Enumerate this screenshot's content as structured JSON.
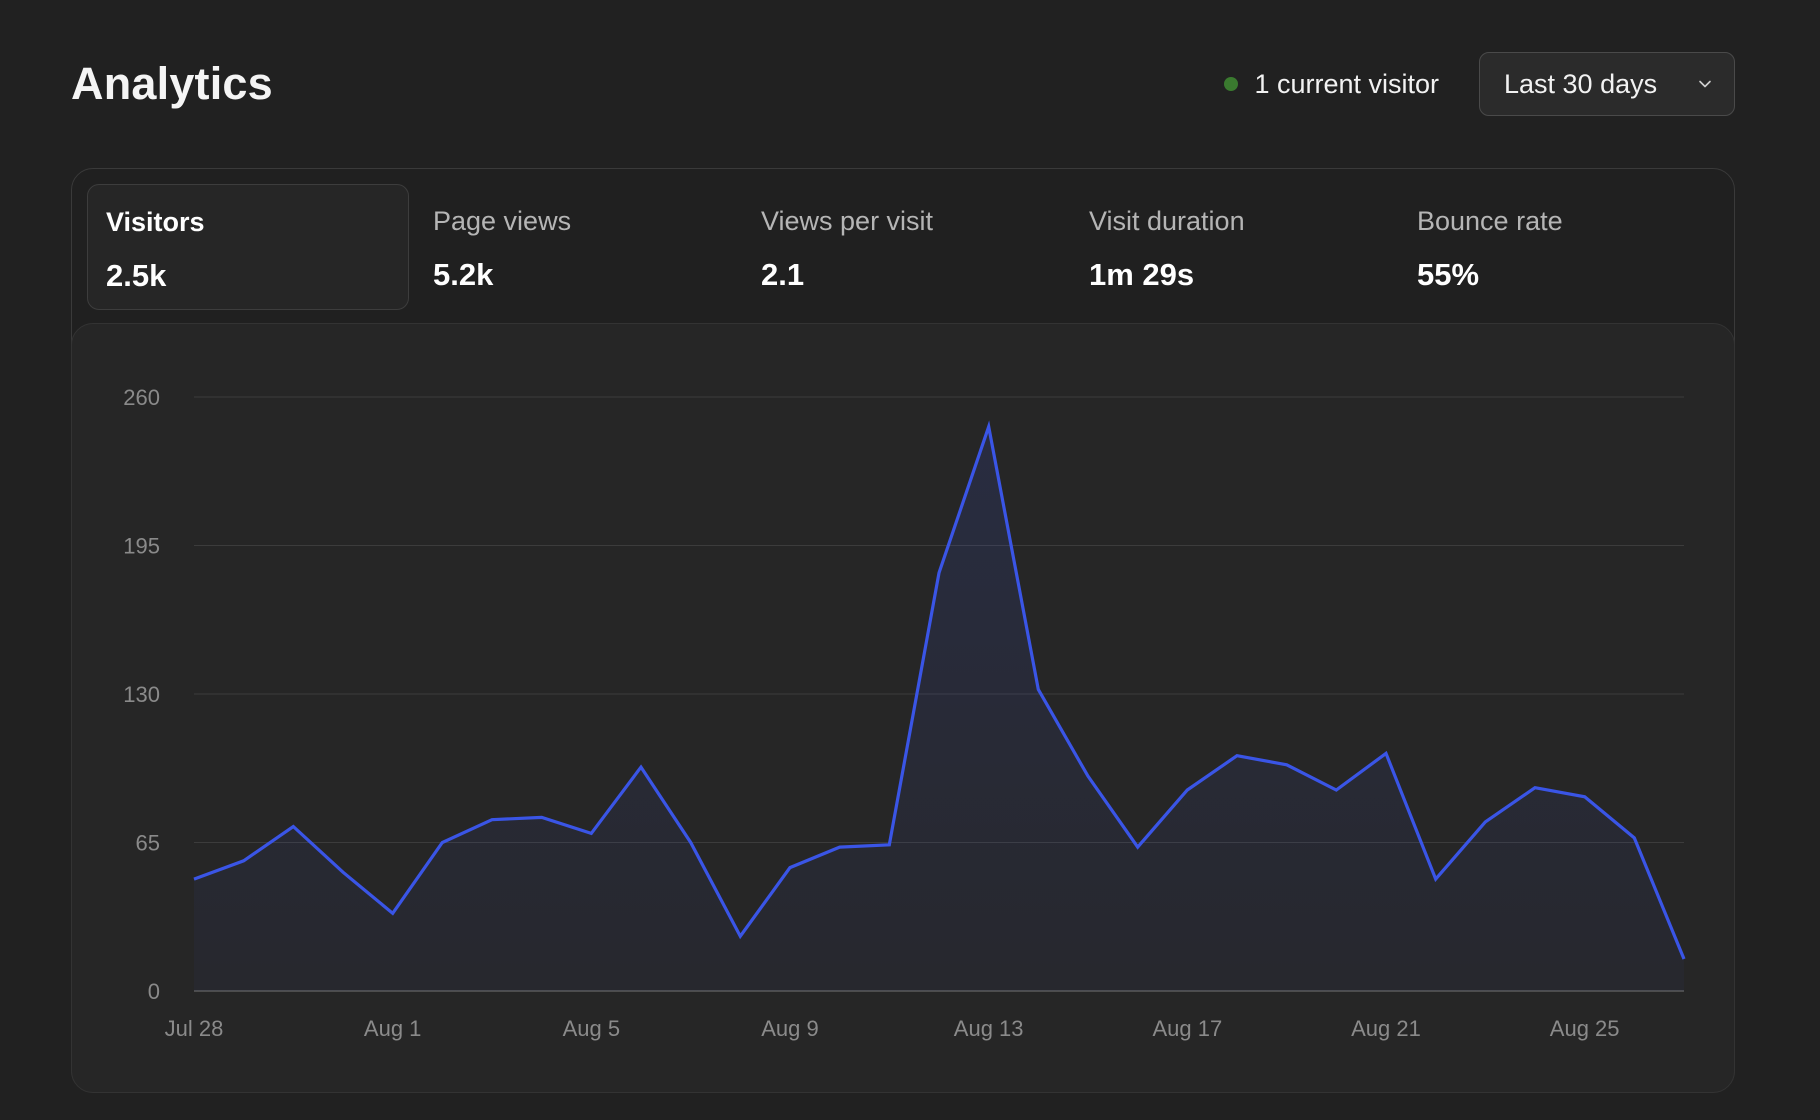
{
  "header": {
    "title": "Analytics",
    "current_visitors": "1 current visitor",
    "range_label": "Last 30 days"
  },
  "colors": {
    "accent": "#3a55e6",
    "live": "#3a7a2f",
    "background": "#212121"
  },
  "metrics": [
    {
      "label": "Visitors",
      "value": "2.5k",
      "active": true
    },
    {
      "label": "Page views",
      "value": "5.2k",
      "active": false
    },
    {
      "label": "Views per visit",
      "value": "2.1",
      "active": false
    },
    {
      "label": "Visit duration",
      "value": "1m 29s",
      "active": false
    },
    {
      "label": "Bounce rate",
      "value": "55%",
      "active": false
    }
  ],
  "chart_data": {
    "type": "area",
    "title": "",
    "xlabel": "",
    "ylabel": "",
    "ylim": [
      0,
      260
    ],
    "yticks": [
      0,
      65,
      130,
      195,
      260
    ],
    "xtick_labels": [
      "Jul 28",
      "Aug 1",
      "Aug 5",
      "Aug 9",
      "Aug 13",
      "Aug 17",
      "Aug 21",
      "Aug 25"
    ],
    "grid": true,
    "x": [
      "Jul 28",
      "Jul 29",
      "Jul 30",
      "Jul 31",
      "Aug 1",
      "Aug 2",
      "Aug 3",
      "Aug 4",
      "Aug 5",
      "Aug 6",
      "Aug 7",
      "Aug 8",
      "Aug 9",
      "Aug 10",
      "Aug 11",
      "Aug 12",
      "Aug 13",
      "Aug 14",
      "Aug 15",
      "Aug 16",
      "Aug 17",
      "Aug 18",
      "Aug 19",
      "Aug 20",
      "Aug 21",
      "Aug 22",
      "Aug 23",
      "Aug 24",
      "Aug 25",
      "Aug 26",
      "Aug 27"
    ],
    "series": [
      {
        "values": [
          49,
          57,
          72,
          52,
          34,
          65,
          75,
          76,
          69,
          98,
          65,
          24,
          54,
          63,
          64,
          183,
          247,
          132,
          94,
          63,
          88,
          103,
          99,
          88,
          104,
          49,
          74,
          89,
          85,
          67,
          14
        ]
      }
    ]
  }
}
